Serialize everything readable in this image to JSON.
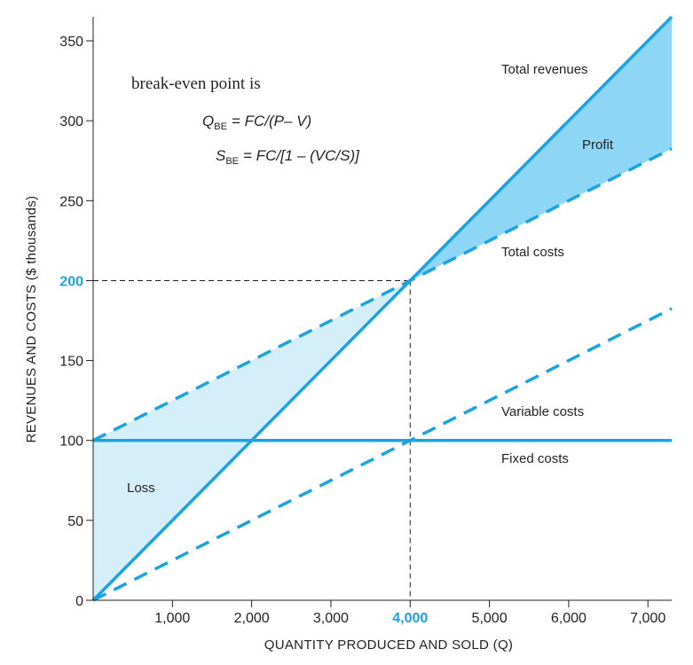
{
  "chart_data": {
    "type": "line",
    "xlabel": "QUANTITY PRODUCED AND SOLD (Q)",
    "ylabel": "REVENUES AND COSTS ($ thousands)",
    "xlim": [
      0,
      7300
    ],
    "ylim": [
      0,
      365
    ],
    "x_ticks": [
      {
        "value": 1000,
        "label": "1,000"
      },
      {
        "value": 2000,
        "label": "2,000"
      },
      {
        "value": 3000,
        "label": "3,000"
      },
      {
        "value": 4000,
        "label": "4,000",
        "highlight": true
      },
      {
        "value": 5000,
        "label": "5,000"
      },
      {
        "value": 6000,
        "label": "6,000"
      },
      {
        "value": 7000,
        "label": "7,000"
      }
    ],
    "y_ticks": [
      {
        "value": 0,
        "label": "0"
      },
      {
        "value": 50,
        "label": "50"
      },
      {
        "value": 100,
        "label": "100"
      },
      {
        "value": 150,
        "label": "150"
      },
      {
        "value": 200,
        "label": "200",
        "highlight": true
      },
      {
        "value": 250,
        "label": "250"
      },
      {
        "value": 300,
        "label": "300"
      },
      {
        "value": 350,
        "label": "350"
      }
    ],
    "series": [
      {
        "name": "Total revenues",
        "style": "solid",
        "x": [
          0,
          7300
        ],
        "y": [
          0,
          365
        ]
      },
      {
        "name": "Total costs",
        "style": "dashed",
        "x": [
          0,
          7300
        ],
        "y": [
          100,
          282.5
        ]
      },
      {
        "name": "Variable costs",
        "style": "dashed",
        "x": [
          0,
          7300
        ],
        "y": [
          0,
          182.5
        ]
      },
      {
        "name": "Fixed costs",
        "style": "solid",
        "x": [
          0,
          7300
        ],
        "y": [
          100,
          100
        ]
      }
    ],
    "regions": [
      {
        "name": "Loss",
        "between": [
          "Total costs",
          "Total revenues"
        ],
        "x_range": [
          0,
          4000
        ]
      },
      {
        "name": "Profit",
        "between": [
          "Total revenues",
          "Total costs"
        ],
        "x_range": [
          4000,
          7300
        ]
      }
    ],
    "break_even": {
      "x": 4000,
      "y": 200
    },
    "annotations": {
      "intro": "break-even point is",
      "formula_q": {
        "var": "Q",
        "sub": "BE",
        "rhs": "= FC/(P– V)"
      },
      "formula_s": {
        "var": "S",
        "sub": "BE",
        "rhs": "= FC/[1 – (VC/S)]"
      }
    },
    "colors": {
      "line": "#1ba3e1",
      "profit_fill": "#8dd6f5",
      "loss_fill": "#d4eefa",
      "axis": "#231f20",
      "highlight_text": "#1ba3e1"
    },
    "grid": false
  }
}
